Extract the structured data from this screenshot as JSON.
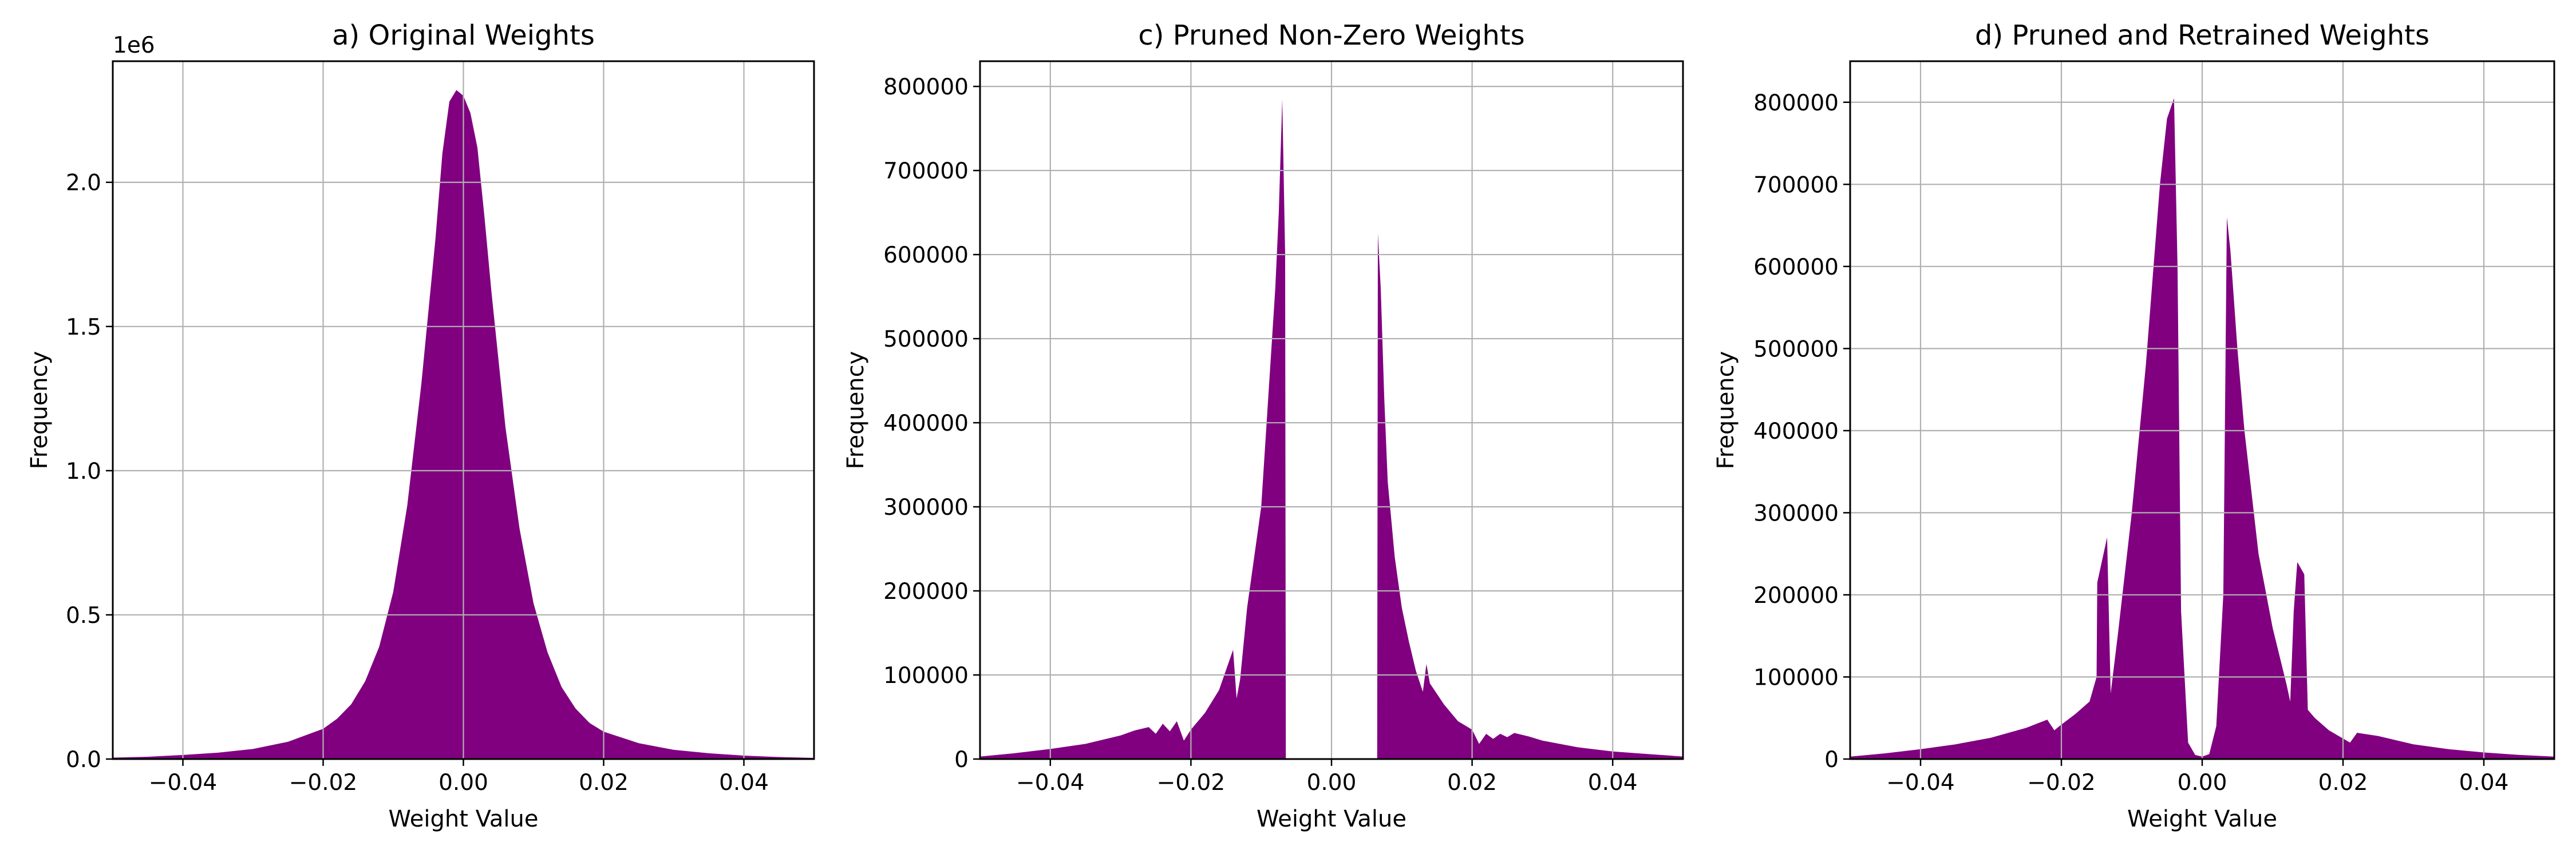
{
  "figure": {
    "colors": {
      "bars": "#800080",
      "grid": "#b0b0b0",
      "axes": "#000000"
    }
  },
  "chart_data": [
    {
      "type": "area",
      "title": "a) Original Weights",
      "xlabel": "Weight Value",
      "ylabel": "Frequency",
      "x_offset_label": "",
      "y_offset_label": "1e6",
      "grid": true,
      "xlim": [
        -0.05,
        0.05
      ],
      "ylim": [
        0,
        2420000
      ],
      "xticks": [
        -0.04,
        -0.02,
        0.0,
        0.02,
        0.04
      ],
      "xtick_labels": [
        "−0.04",
        "−0.02",
        "0.00",
        "0.02",
        "0.04"
      ],
      "yticks": [
        0,
        500000,
        1000000,
        1500000,
        2000000
      ],
      "ytick_labels": [
        "0.0",
        "0.5",
        "1.0",
        "1.5",
        "2.0"
      ],
      "series": [
        {
          "x": [
            -0.05,
            -0.045,
            -0.04,
            -0.035,
            -0.03,
            -0.025,
            -0.02,
            -0.018,
            -0.016,
            -0.014,
            -0.012,
            -0.01,
            -0.008,
            -0.006,
            -0.004,
            -0.003,
            -0.002,
            -0.001,
            0.0,
            0.001,
            0.002,
            0.003,
            0.004,
            0.006,
            0.008,
            0.01,
            0.012,
            0.014,
            0.016,
            0.018,
            0.02,
            0.025,
            0.03,
            0.035,
            0.04,
            0.045,
            0.05
          ],
          "y": [
            5000,
            8000,
            14000,
            22000,
            35000,
            60000,
            105000,
            140000,
            190000,
            270000,
            390000,
            580000,
            880000,
            1300000,
            1800000,
            2100000,
            2280000,
            2320000,
            2300000,
            2240000,
            2120000,
            1880000,
            1620000,
            1150000,
            800000,
            540000,
            370000,
            250000,
            175000,
            125000,
            95000,
            55000,
            32000,
            20000,
            12000,
            7000,
            4000
          ]
        }
      ]
    },
    {
      "type": "area",
      "title": "c) Pruned Non-Zero Weights",
      "xlabel": "Weight Value",
      "ylabel": "Frequency",
      "x_offset_label": "",
      "y_offset_label": "",
      "grid": true,
      "xlim": [
        -0.05,
        0.05
      ],
      "ylim": [
        0,
        830000
      ],
      "xticks": [
        -0.04,
        -0.02,
        0.0,
        0.02,
        0.04
      ],
      "xtick_labels": [
        "−0.04",
        "−0.02",
        "0.00",
        "0.02",
        "0.04"
      ],
      "yticks": [
        0,
        100000,
        200000,
        300000,
        400000,
        500000,
        600000,
        700000,
        800000
      ],
      "ytick_labels": [
        "0",
        "100000",
        "200000",
        "300000",
        "400000",
        "500000",
        "600000",
        "700000",
        "800000"
      ],
      "series": [
        {
          "x": [
            -0.05,
            -0.045,
            -0.04,
            -0.035,
            -0.03,
            -0.028,
            -0.026,
            -0.025,
            -0.024,
            -0.023,
            -0.022,
            -0.021,
            -0.02,
            -0.018,
            -0.016,
            -0.014,
            -0.0135,
            -0.013,
            -0.012,
            -0.011,
            -0.01,
            -0.009,
            -0.008,
            -0.0075,
            -0.007,
            -0.0066,
            -0.0065,
            0.0065,
            0.0066,
            0.007,
            0.0075,
            0.008,
            0.009,
            0.01,
            0.011,
            0.012,
            0.013,
            0.0135,
            0.014,
            0.016,
            0.018,
            0.02,
            0.021,
            0.022,
            0.023,
            0.024,
            0.025,
            0.026,
            0.028,
            0.03,
            0.035,
            0.04,
            0.045,
            0.05
          ],
          "y": [
            3000,
            7000,
            12000,
            18000,
            28000,
            34000,
            38000,
            30000,
            42000,
            33000,
            45000,
            22000,
            35000,
            55000,
            82000,
            130000,
            72000,
            95000,
            180000,
            240000,
            300000,
            430000,
            560000,
            650000,
            785000,
            600000,
            0,
            0,
            625000,
            560000,
            430000,
            330000,
            240000,
            180000,
            140000,
            105000,
            80000,
            113000,
            90000,
            65000,
            45000,
            35000,
            18000,
            30000,
            24000,
            30000,
            26000,
            31000,
            27000,
            22000,
            14000,
            9000,
            6000,
            3000
          ]
        }
      ]
    },
    {
      "type": "area",
      "title": "d) Pruned and Retrained Weights",
      "xlabel": "Weight Value",
      "ylabel": "Frequency",
      "x_offset_label": "",
      "y_offset_label": "",
      "grid": true,
      "xlim": [
        -0.05,
        0.05
      ],
      "ylim": [
        0,
        850000
      ],
      "xticks": [
        -0.04,
        -0.02,
        0.0,
        0.02,
        0.04
      ],
      "xtick_labels": [
        "−0.04",
        "−0.02",
        "0.00",
        "0.02",
        "0.04"
      ],
      "yticks": [
        0,
        100000,
        200000,
        300000,
        400000,
        500000,
        600000,
        700000,
        800000
      ],
      "ytick_labels": [
        "0",
        "100000",
        "200000",
        "300000",
        "400000",
        "500000",
        "600000",
        "700000",
        "800000"
      ],
      "series": [
        {
          "x": [
            -0.05,
            -0.045,
            -0.04,
            -0.035,
            -0.03,
            -0.025,
            -0.022,
            -0.021,
            -0.02,
            -0.018,
            -0.016,
            -0.015,
            -0.0149,
            -0.0135,
            -0.013,
            -0.012,
            -0.01,
            -0.008,
            -0.006,
            -0.005,
            -0.004,
            -0.0035,
            -0.003,
            -0.002,
            -0.001,
            0.0,
            0.001,
            0.002,
            0.003,
            0.0035,
            0.004,
            0.005,
            0.006,
            0.008,
            0.01,
            0.012,
            0.0125,
            0.013,
            0.0135,
            0.0145,
            0.015,
            0.016,
            0.018,
            0.02,
            0.021,
            0.022,
            0.025,
            0.03,
            0.035,
            0.04,
            0.045,
            0.05
          ],
          "y": [
            3000,
            7000,
            12000,
            18000,
            26000,
            38000,
            48000,
            35000,
            42000,
            55000,
            70000,
            100000,
            215000,
            270000,
            80000,
            150000,
            300000,
            480000,
            700000,
            780000,
            805000,
            600000,
            180000,
            20000,
            5000,
            3000,
            6000,
            40000,
            200000,
            660000,
            620000,
            500000,
            400000,
            250000,
            160000,
            90000,
            70000,
            180000,
            240000,
            225000,
            60000,
            50000,
            35000,
            25000,
            20000,
            32000,
            28000,
            18000,
            12000,
            8000,
            5000,
            3000
          ]
        }
      ]
    }
  ]
}
